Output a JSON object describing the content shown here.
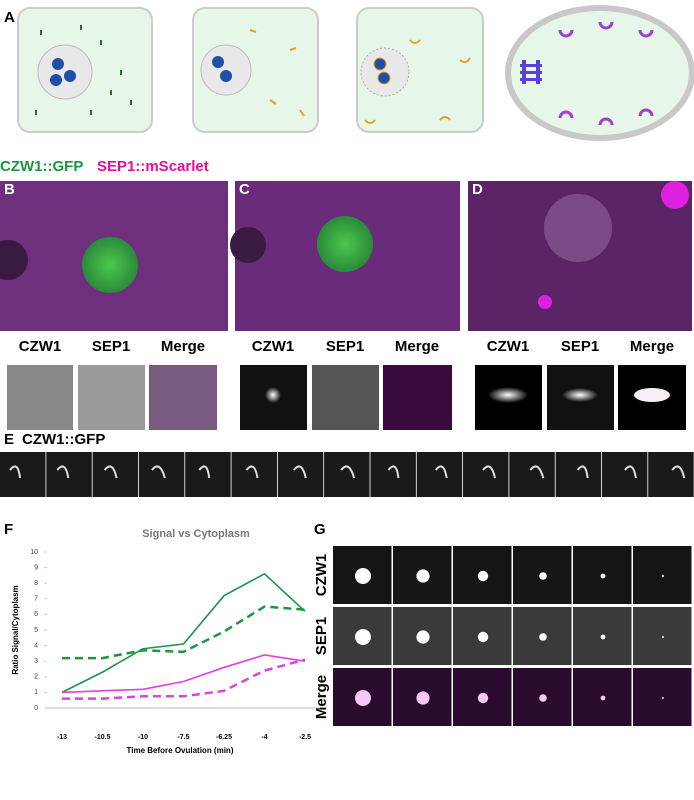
{
  "panel_labels": [
    "A",
    "B",
    "C",
    "D",
    "E",
    "F",
    "G"
  ],
  "stain_legend": {
    "green": "CZW1::GFP",
    "magenta": "SEP1::mScarlet"
  },
  "insets": [
    [
      "CZW1",
      "SEP1",
      "Merge"
    ],
    [
      "CZW1",
      "SEP1",
      "Merge"
    ],
    [
      "CZW1",
      "SEP1",
      "Merge"
    ]
  ],
  "panel_e_title": "CZW1::GFP",
  "panel_g_rows": [
    "CZW1",
    "SEP1",
    "Merge"
  ],
  "chart_data": {
    "type": "line",
    "title": "Signal vs Cytoplasm",
    "y_label": "Ratio Signal/Cytoplasm",
    "x_label": "Time Before Ovulation (min)",
    "categories": [
      "-13",
      "-10.5",
      "-10",
      "-7.5",
      "-6.25",
      "-4",
      "-2.5"
    ],
    "series": [
      {
        "color": "#1a9641",
        "dash": false,
        "values": [
          1.0,
          2.3,
          3.8,
          4.1,
          7.2,
          8.6,
          6.2
        ]
      },
      {
        "color": "#1a9641",
        "dash": true,
        "values": [
          3.2,
          3.2,
          3.7,
          3.6,
          4.9,
          6.5,
          6.3
        ]
      },
      {
        "color": "#e040e0",
        "dash": false,
        "values": [
          1.0,
          1.1,
          1.2,
          1.7,
          2.6,
          3.4,
          3.0
        ]
      },
      {
        "color": "#e040e0",
        "dash": true,
        "values": [
          0.6,
          0.6,
          0.75,
          0.75,
          1.1,
          2.4,
          3.1
        ]
      }
    ],
    "ylim": [
      0,
      10
    ],
    "yticks": [
      0,
      1,
      2,
      3,
      4,
      5,
      6,
      7,
      8,
      9,
      10
    ]
  }
}
